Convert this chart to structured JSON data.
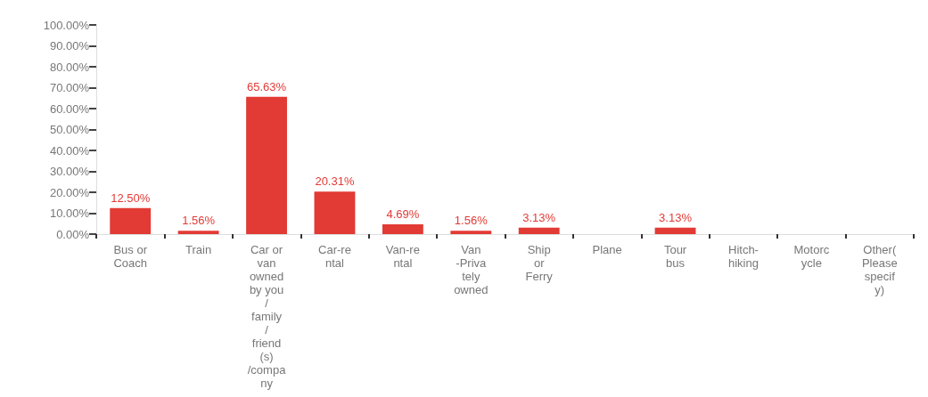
{
  "chart_data": {
    "type": "bar",
    "categories": [
      "Bus or\nCoach",
      "Train",
      "Car or\nvan\nowned\nby you\n/\nfamily\n/\nfriend\n(s)\n/compa\nny",
      "Car-re\nntal",
      "Van-re\nntal",
      "Van\n-Priva\ntely\nowned",
      "Ship\nor\nFerry",
      "Plane",
      "Tour\nbus",
      "Hitch-\nhiking",
      "Motorc\nycle",
      "Other(\nPlease\nspecif\ny)"
    ],
    "values": [
      12.5,
      1.56,
      65.63,
      20.31,
      4.69,
      1.56,
      3.13,
      0,
      3.13,
      0,
      0,
      0
    ],
    "value_labels": [
      "12.50%",
      "1.56%",
      "65.63%",
      "20.31%",
      "4.69%",
      "1.56%",
      "3.13%",
      null,
      "3.13%",
      null,
      null,
      null
    ],
    "color": "#e23a35",
    "ylim": [
      0,
      100
    ],
    "yticks": [
      {
        "value": 0,
        "label": "0.00%"
      },
      {
        "value": 10,
        "label": "10.00%"
      },
      {
        "value": 20,
        "label": "20.00%"
      },
      {
        "value": 30,
        "label": "30.00%"
      },
      {
        "value": 40,
        "label": "40.00%"
      },
      {
        "value": 50,
        "label": "50.00%"
      },
      {
        "value": 60,
        "label": "60.00%"
      },
      {
        "value": 70,
        "label": "70.00%"
      },
      {
        "value": 80,
        "label": "80.00%"
      },
      {
        "value": 90,
        "label": "90.00%"
      },
      {
        "value": 100,
        "label": "100.00%"
      }
    ],
    "grid": false
  }
}
